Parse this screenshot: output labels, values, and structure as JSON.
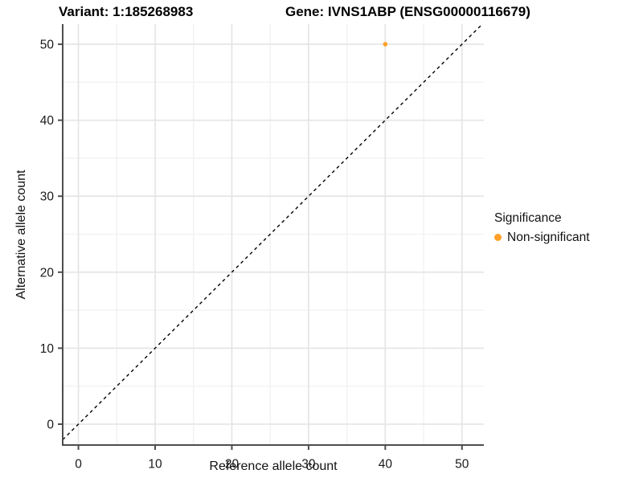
{
  "titles": {
    "variant": "Variant: 1:185268983",
    "gene": "Gene: IVNS1ABP (ENSG00000116679)"
  },
  "chart_data": {
    "type": "scatter",
    "title": "Variant: 1:185268983  Gene: IVNS1ABP (ENSG00000116679)",
    "xlabel": "Reference allele count",
    "ylabel": "Alternative allele count",
    "xlim": [
      -2.05,
      52.85
    ],
    "ylim": [
      -2.75,
      52.65
    ],
    "x_ticks": [
      0,
      10,
      20,
      30,
      40,
      50
    ],
    "y_ticks": [
      0,
      10,
      20,
      30,
      40,
      50
    ],
    "x_minor_ticks": [
      5,
      15,
      25,
      35,
      45
    ],
    "y_minor_ticks": [
      5,
      15,
      25,
      35,
      45
    ],
    "grid": "major-and-minor",
    "series": [
      {
        "name": "Non-significant",
        "points": [
          {
            "x": 40,
            "y": 50
          }
        ]
      }
    ],
    "reference_line": {
      "kind": "identity",
      "equation": "y = x",
      "style": "dashed",
      "color": "#000000"
    },
    "legend": {
      "title": "Significance",
      "position": "right",
      "items": [
        {
          "label": "Non-significant",
          "color": "#FFA028"
        }
      ]
    }
  },
  "colors": {
    "point": "#FFA028",
    "grid_major": "#E4E4E4",
    "grid_minor": "#F2F2F2",
    "axis_line": "#4D4D4D",
    "tick_text": "#1A1A1A",
    "dashed_line": "#000000",
    "background": "#FFFFFF"
  }
}
